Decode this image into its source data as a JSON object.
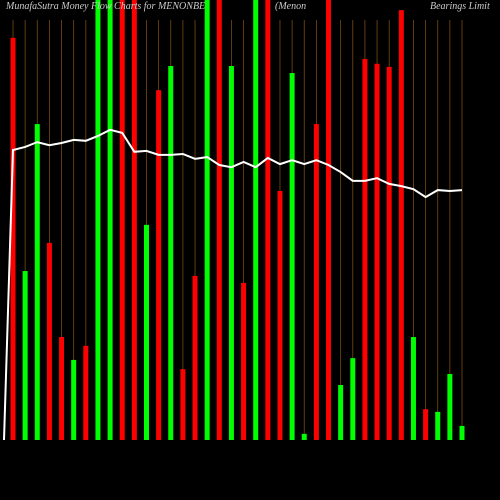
{
  "chart_data": {
    "type": "bar",
    "title_parts": [
      "MunafaSutra  Money Flow Charts for MENONBE",
      "(Menon",
      "Bearings Limit"
    ],
    "categories": [
      null,
      null,
      null,
      null,
      null,
      null,
      null,
      null,
      null,
      null,
      null,
      null,
      null,
      null,
      null,
      null,
      null,
      null,
      null,
      null,
      null,
      null,
      null,
      null,
      null,
      null,
      null,
      null,
      null,
      null,
      null,
      null,
      null,
      null,
      null,
      null,
      null,
      null
    ],
    "values": [
      91.4,
      38.4,
      71.8,
      44.8,
      23.4,
      18.2,
      21.4,
      100,
      100,
      100,
      100,
      48.9,
      79.5,
      85,
      16.1,
      37.3,
      100,
      100,
      85,
      35.7,
      100,
      100,
      56.6,
      83.4,
      1.4,
      71.8,
      100,
      12.5,
      18.6,
      86.6,
      85.5,
      84.8,
      97.7,
      23.4,
      7,
      6.4,
      15,
      3.2
    ],
    "colors": [
      "#ff0000",
      "#00ff00",
      "#00ff00",
      "#ff0000",
      "#ff0000",
      "#00ff00",
      "#ff0000",
      "#00ff00",
      "#00ff00",
      "#ff0000",
      "#ff0000",
      "#00ff00",
      "#ff0000",
      "#00ff00",
      "#ff0000",
      "#ff0000",
      "#00ff00",
      "#ff0000",
      "#00ff00",
      "#ff0000",
      "#00ff00",
      "#ff0000",
      "#ff0000",
      "#00ff00",
      "#00ff00",
      "#ff0000",
      "#ff0000",
      "#00ff00",
      "#00ff00",
      "#ff0000",
      "#ff0000",
      "#ff0000",
      "#ff0000",
      "#00ff00",
      "#ff0000",
      "#00ff00",
      "#00ff00",
      "#00ff00"
    ],
    "line": {
      "color": "#ffffff",
      "values": [
        65.9,
        66.6,
        67.7,
        67,
        67.5,
        68.2,
        68,
        69.1,
        70.5,
        69.8,
        65.5,
        65.7,
        64.8,
        64.8,
        65,
        63.9,
        64.3,
        62.5,
        62,
        63.2,
        62,
        64.1,
        62.7,
        63.6,
        62.7,
        63.6,
        62.5,
        60.9,
        58.9,
        58.9,
        59.5,
        58.2,
        57.7,
        57,
        55.2,
        56.8,
        56.6,
        56.8
      ]
    },
    "ylim": [
      0,
      100
    ]
  }
}
